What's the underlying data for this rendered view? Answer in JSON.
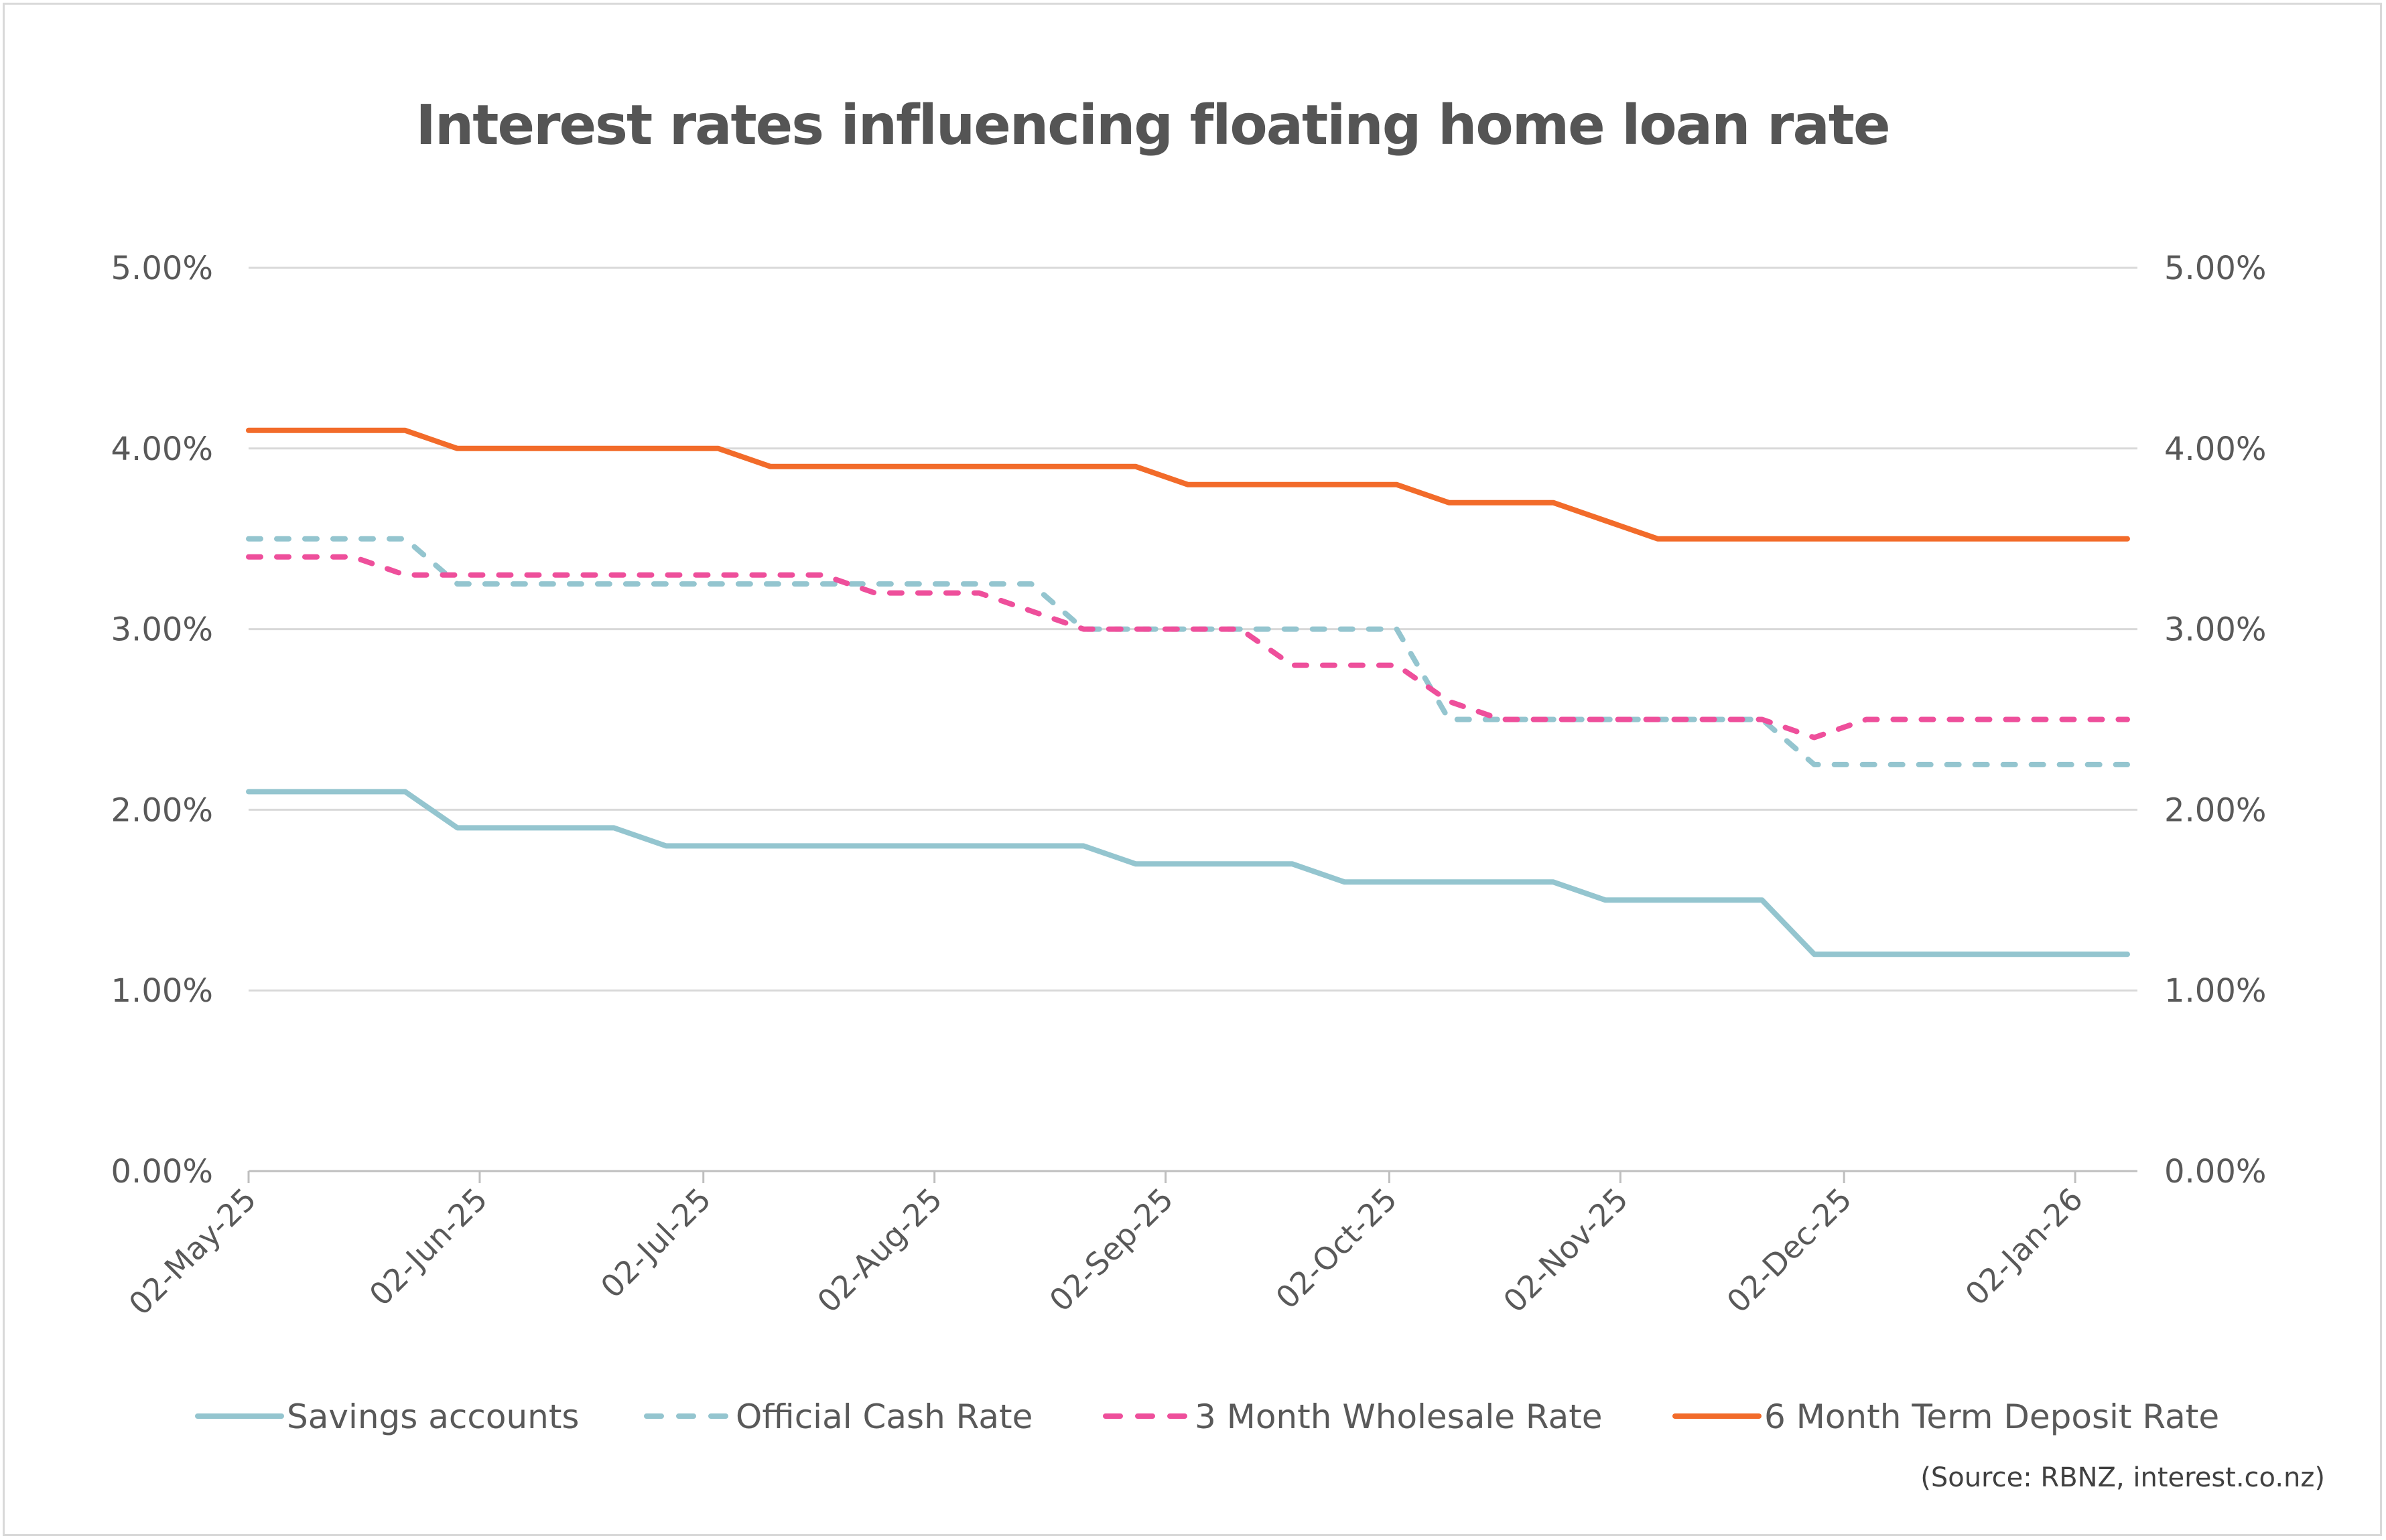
{
  "chart_data": {
    "type": "line",
    "title": "Interest rates influencing floating home loan rate",
    "source": "(Source:  RBNZ, interest.co.nz)",
    "ylim": [
      0,
      5
    ],
    "y_ticks": [
      "0.00%",
      "1.00%",
      "2.00%",
      "3.00%",
      "4.00%",
      "5.00%"
    ],
    "secondary_y_ticks": [
      "0.00%",
      "1.00%",
      "2.00%",
      "3.00%",
      "4.00%",
      "5.00%"
    ],
    "x_ticks": [
      {
        "date": "2025-05-02",
        "label": "02-May-25"
      },
      {
        "date": "2025-06-02",
        "label": "02-Jun-25"
      },
      {
        "date": "2025-07-02",
        "label": "02-Jul-25"
      },
      {
        "date": "2025-08-02",
        "label": "02-Aug-25"
      },
      {
        "date": "2025-09-02",
        "label": "02-Sep-25"
      },
      {
        "date": "2025-10-02",
        "label": "02-Oct-25"
      },
      {
        "date": "2025-11-02",
        "label": "02-Nov-25"
      },
      {
        "date": "2025-12-02",
        "label": "02-Dec-25"
      },
      {
        "date": "2026-01-02",
        "label": "02-Jan-26"
      }
    ],
    "grid": true,
    "legend": "bottom",
    "x": [
      "2025-05-02",
      "2025-05-09",
      "2025-05-16",
      "2025-05-23",
      "2025-05-30",
      "2025-06-06",
      "2025-06-13",
      "2025-06-20",
      "2025-06-27",
      "2025-07-04",
      "2025-07-11",
      "2025-07-18",
      "2025-07-25",
      "2025-08-01",
      "2025-08-08",
      "2025-08-15",
      "2025-08-22",
      "2025-08-29",
      "2025-09-05",
      "2025-09-12",
      "2025-09-19",
      "2025-09-26",
      "2025-10-03",
      "2025-10-10",
      "2025-10-17",
      "2025-10-24",
      "2025-10-31",
      "2025-11-07",
      "2025-11-14",
      "2025-11-21",
      "2025-11-28",
      "2025-12-05",
      "2025-12-12",
      "2025-12-19",
      "2025-12-26",
      "2026-01-02",
      "2026-01-09"
    ],
    "series": [
      {
        "name": "Savings accounts",
        "color": "#94c5cf",
        "dash": false,
        "values": [
          2.1,
          2.1,
          2.1,
          2.1,
          1.9,
          1.9,
          1.9,
          1.9,
          1.8,
          1.8,
          1.8,
          1.8,
          1.8,
          1.8,
          1.8,
          1.8,
          1.8,
          1.7,
          1.7,
          1.7,
          1.7,
          1.6,
          1.6,
          1.6,
          1.6,
          1.6,
          1.5,
          1.5,
          1.5,
          1.5,
          1.2,
          1.2,
          1.2,
          1.2,
          1.2,
          1.2,
          1.2
        ]
      },
      {
        "name": "Official Cash Rate",
        "color": "#94c5cf",
        "dash": true,
        "values": [
          3.5,
          3.5,
          3.5,
          3.5,
          3.25,
          3.25,
          3.25,
          3.25,
          3.25,
          3.25,
          3.25,
          3.25,
          3.25,
          3.25,
          3.25,
          3.25,
          3.0,
          3.0,
          3.0,
          3.0,
          3.0,
          3.0,
          3.0,
          2.5,
          2.5,
          2.5,
          2.5,
          2.5,
          2.5,
          2.5,
          2.25,
          2.25,
          2.25,
          2.25,
          2.25,
          2.25,
          2.25
        ]
      },
      {
        "name": "3 Month Wholesale Rate",
        "color": "#ee4f9b",
        "dash": true,
        "values": [
          3.4,
          3.4,
          3.4,
          3.3,
          3.3,
          3.3,
          3.3,
          3.3,
          3.3,
          3.3,
          3.3,
          3.3,
          3.2,
          3.2,
          3.2,
          3.1,
          3.0,
          3.0,
          3.0,
          3.0,
          2.8,
          2.8,
          2.8,
          2.6,
          2.5,
          2.5,
          2.5,
          2.5,
          2.5,
          2.5,
          2.4,
          2.5,
          2.5,
          2.5,
          2.5,
          2.5,
          2.5
        ]
      },
      {
        "name": "6 Month Term Deposit Rate",
        "color": "#f26b2a",
        "dash": false,
        "values": [
          4.1,
          4.1,
          4.1,
          4.1,
          4.0,
          4.0,
          4.0,
          4.0,
          4.0,
          4.0,
          3.9,
          3.9,
          3.9,
          3.9,
          3.9,
          3.9,
          3.9,
          3.9,
          3.8,
          3.8,
          3.8,
          3.8,
          3.8,
          3.7,
          3.7,
          3.7,
          3.6,
          3.5,
          3.5,
          3.5,
          3.5,
          3.5,
          3.5,
          3.5,
          3.5,
          3.5,
          3.5
        ]
      }
    ]
  }
}
